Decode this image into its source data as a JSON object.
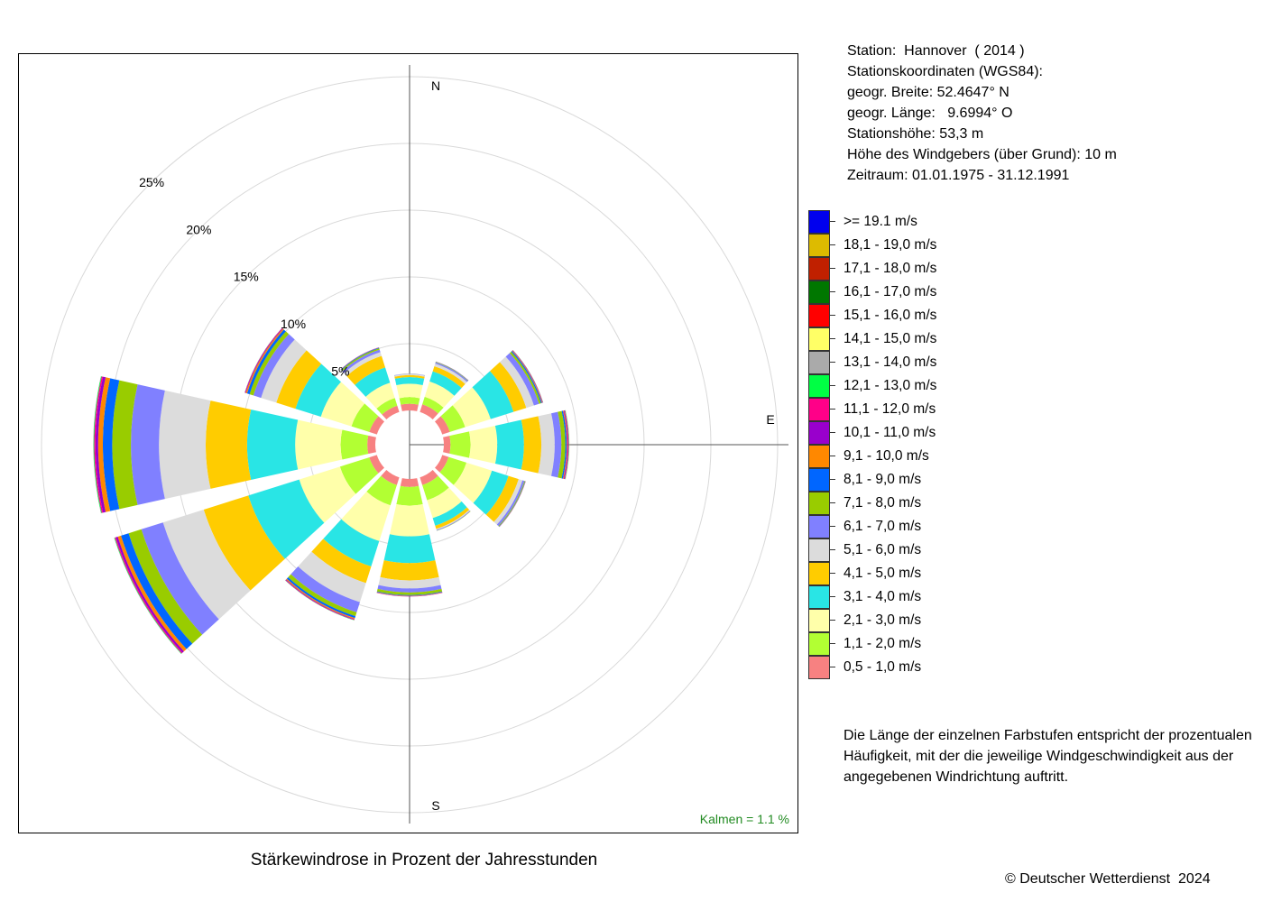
{
  "info": {
    "station": "Station:  Hannover  ( 2014 )",
    "coords_heading": "Stationskoordinaten (WGS84):",
    "latitude": "geogr. Breite: 52.4647° N",
    "longitude": "geogr. Länge:   9.6994° O",
    "elevation": "Stationshöhe: 53,3 m",
    "sensor_height": "Höhe des Windgebers (über Grund): 10 m",
    "period": "Zeitraum: 01.01.1975 - 31.12.1991"
  },
  "note": "Die Länge der einzelnen Farbstufen entspricht der prozentualen Häufigkeit, mit der die jeweilige Windgeschwindigkeit aus der angegebenen Windrichtung auftritt.",
  "caption": "Stärkewindrose in Prozent der Jahresstunden",
  "copyright": "© Deutscher Wetterdienst  2024",
  "chart_data": {
    "type": "wind-rose",
    "title": "Stärkewindrose in Prozent der Jahresstunden",
    "calm_label": "Kalmen  =  1.1 %",
    "calm_percent": 1.1,
    "calm_color": "#228b22",
    "radial_max": 27.5,
    "ring_values": [
      5,
      10,
      15,
      20,
      25
    ],
    "ring_labels": [
      "5%",
      "10%",
      "15%",
      "20%",
      "25%"
    ],
    "compass_labels": {
      "N": "N",
      "E": "E",
      "S": "S"
    },
    "directions_deg": [
      0,
      30,
      60,
      90,
      120,
      150,
      180,
      210,
      240,
      270,
      300,
      330
    ],
    "speed_classes": [
      {
        "label": "0,5 - 1,0 m/s",
        "color": "#f78181"
      },
      {
        "label": "1,1 - 2,0 m/s",
        "color": "#b2ff33"
      },
      {
        "label": "2,1 - 3,0 m/s",
        "color": "#ffffaa"
      },
      {
        "label": "3,1 - 4,0 m/s",
        "color": "#29e5e5"
      },
      {
        "label": "4,1 - 5,0 m/s",
        "color": "#ffcc00"
      },
      {
        "label": "5,1 - 6,0 m/s",
        "color": "#dcdcdc"
      },
      {
        "label": "6,1 - 7,0 m/s",
        "color": "#8080ff"
      },
      {
        "label": "7,1 - 8,0 m/s",
        "color": "#99cc00"
      },
      {
        "label": "8,1 - 9,0 m/s",
        "color": "#0066ff"
      },
      {
        "label": "9,1 - 10,0 m/s",
        "color": "#ff8800"
      },
      {
        "label": "10,1 - 11,0 m/s",
        "color": "#9900cc"
      },
      {
        "label": "11,1 - 12,0 m/s",
        "color": "#ff0088"
      },
      {
        "label": "12,1 - 13,0 m/s",
        "color": "#00ff44"
      },
      {
        "label": "13,1 - 14,0 m/s",
        "color": "#aaaaaa"
      },
      {
        "label": "14,1 - 15,0 m/s",
        "color": "#ffff66"
      },
      {
        "label": "15,1 - 16,0 m/s",
        "color": "#ff0000"
      },
      {
        "label": "16,1 - 17,0 m/s",
        "color": "#007700"
      },
      {
        "label": "17,1 - 18,0 m/s",
        "color": "#c02000"
      },
      {
        "label": "18,1 - 19,0 m/s",
        "color": "#ddbb00"
      },
      {
        "label": ">= 19.1 m/s",
        "color": "#0000ee"
      }
    ],
    "series": [
      {
        "values": [
          0.5,
          0.5,
          1.0,
          0.5,
          0.15,
          0.08,
          0.02,
          0.01,
          0,
          0,
          0,
          0,
          0,
          0,
          0,
          0,
          0,
          0,
          0,
          0
        ]
      },
      {
        "values": [
          0.6,
          0.6,
          1.2,
          0.8,
          0.4,
          0.2,
          0.1,
          0.03,
          0.02,
          0.01,
          0.01,
          0,
          0,
          0,
          0,
          0,
          0,
          0,
          0,
          0
        ]
      },
      {
        "values": [
          0.6,
          1.2,
          2.0,
          1.8,
          1.0,
          0.6,
          0.4,
          0.15,
          0.08,
          0.04,
          0.03,
          0.02,
          0.01,
          0,
          0,
          0,
          0,
          0,
          0,
          0
        ]
      },
      {
        "values": [
          0.5,
          1.5,
          2.0,
          2.0,
          1.3,
          1.0,
          0.5,
          0.3,
          0.1,
          0.05,
          0.05,
          0.05,
          0.03,
          0.02,
          0.01,
          0,
          0,
          0,
          0,
          0
        ]
      },
      {
        "values": [
          0.5,
          1.4,
          2.0,
          1.3,
          0.8,
          0.3,
          0.15,
          0.05,
          0.03,
          0.02,
          0.01,
          0,
          0,
          0,
          0,
          0,
          0,
          0,
          0,
          0
        ]
      },
      {
        "values": [
          0.6,
          1.2,
          1.4,
          0.6,
          0.25,
          0.08,
          0.05,
          0.02,
          0,
          0,
          0,
          0,
          0,
          0,
          0,
          0,
          0,
          0,
          0,
          0
        ]
      },
      {
        "values": [
          0.6,
          1.4,
          2.3,
          2.0,
          1.3,
          0.6,
          0.3,
          0.2,
          0.05,
          0.03,
          0.02,
          0.01,
          0,
          0,
          0,
          0,
          0,
          0,
          0,
          0
        ]
      },
      {
        "values": [
          0.6,
          1.6,
          2.8,
          2.0,
          1.3,
          1.5,
          0.8,
          0.3,
          0.15,
          0.08,
          0.05,
          0.03,
          0.02,
          0,
          0,
          0,
          0,
          0,
          0,
          0
        ]
      },
      {
        "values": [
          0.6,
          2.3,
          3.2,
          4.0,
          3.5,
          3.2,
          1.7,
          1.0,
          0.6,
          0.25,
          0.15,
          0.08,
          0.04,
          0.02,
          0,
          0,
          0,
          0,
          0,
          0
        ]
      },
      {
        "values": [
          0.6,
          2.0,
          3.4,
          3.6,
          3.1,
          3.5,
          2.1,
          1.4,
          0.7,
          0.35,
          0.2,
          0.1,
          0.05,
          0.02,
          0,
          0,
          0,
          0,
          0,
          0
        ]
      },
      {
        "values": [
          0.6,
          1.4,
          2.4,
          2.0,
          1.5,
          1.2,
          0.6,
          0.3,
          0.2,
          0.1,
          0.05,
          0.03,
          0.01,
          0,
          0,
          0,
          0,
          0,
          0,
          0
        ]
      },
      {
        "values": [
          0.5,
          0.6,
          1.2,
          1.2,
          0.9,
          0.3,
          0.2,
          0.1,
          0.05,
          0.02,
          0.01,
          0,
          0,
          0,
          0,
          0,
          0,
          0,
          0,
          0
        ]
      }
    ]
  }
}
